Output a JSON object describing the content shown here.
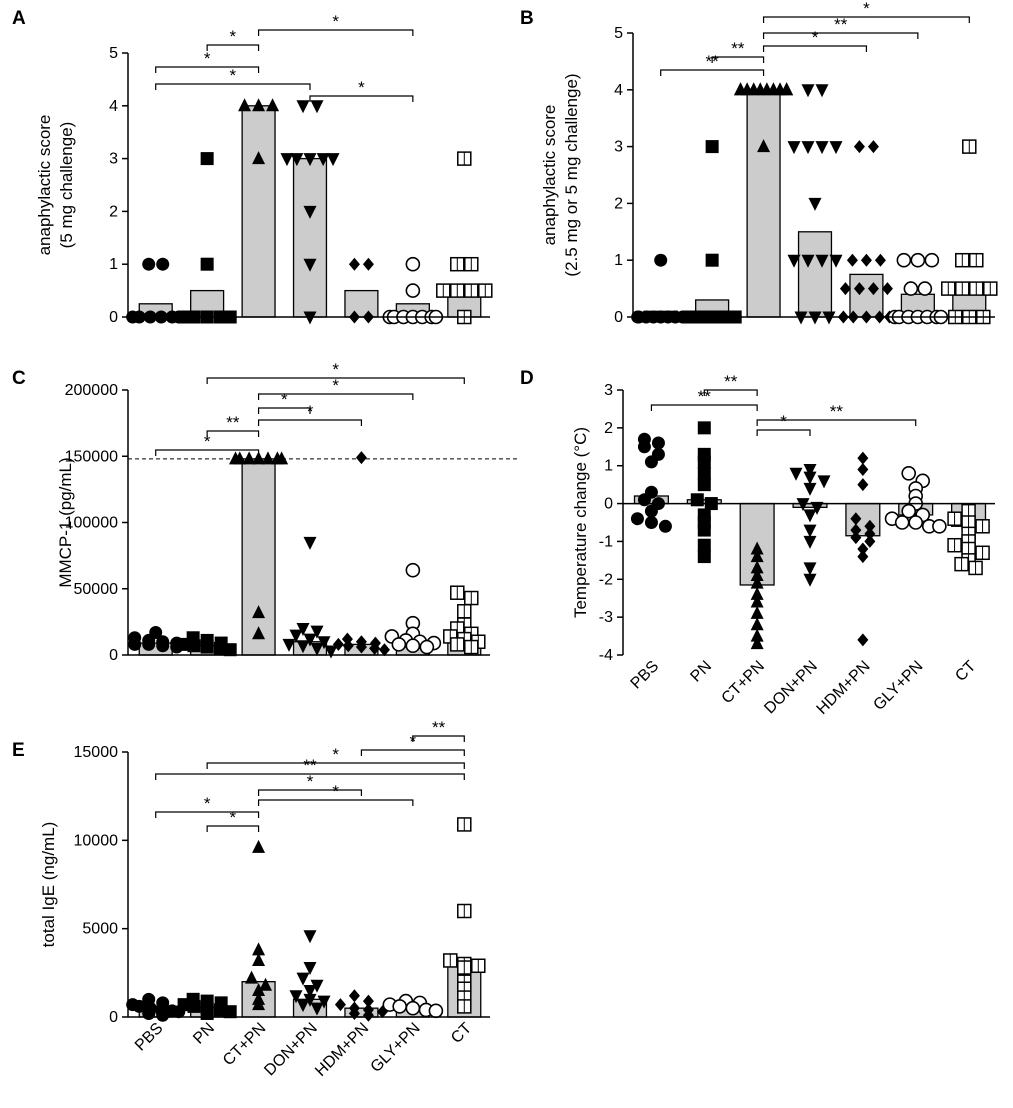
{
  "chart_data": [
    {
      "panel": "A",
      "type": "bar",
      "bar_style": "mean bar with individual points",
      "ylabel": [
        "anaphylactic score",
        "(5 mg challenge)"
      ],
      "ylim": [
        0,
        5
      ],
      "yticks": [
        "0",
        "1",
        "2",
        "3",
        "4",
        "5"
      ],
      "categories": [
        "PBS",
        "PN",
        "CT+PN",
        "DON+PN",
        "HDM+PN",
        "GLY+PN",
        "CT"
      ],
      "show_category_labels": false,
      "bar_values": [
        0.25,
        0.5,
        4,
        3,
        0.5,
        0.25,
        0.5
      ],
      "points": [
        [
          1,
          1,
          0,
          0,
          0,
          0,
          0,
          0
        ],
        [
          3,
          1,
          0,
          0,
          0,
          0,
          0
        ],
        [
          4,
          4,
          4,
          3
        ],
        [
          4,
          4,
          3,
          3,
          3,
          3,
          3,
          2,
          1,
          0
        ],
        [
          1,
          1,
          0,
          0
        ],
        [
          1,
          0.5,
          0,
          0,
          0,
          0,
          0,
          0,
          0
        ],
        [
          3,
          1,
          1,
          0.5,
          0.5,
          0.5,
          0.5,
          0
        ]
      ],
      "comparisons": [
        {
          "from": 0,
          "to": 2,
          "level": 0,
          "label": "*"
        },
        {
          "from": 1,
          "to": 2,
          "level": 1,
          "label": "*"
        },
        {
          "from": 2,
          "to": 5,
          "level": 2,
          "label": "*"
        },
        {
          "from": 0,
          "to": 3,
          "level": -1,
          "label": "*"
        },
        {
          "from": 3,
          "to": 5,
          "level": -2,
          "label": "*"
        }
      ]
    },
    {
      "panel": "B",
      "type": "bar",
      "bar_style": "mean bar with individual points",
      "ylabel": [
        "anaphylactic score",
        "(2.5 mg or 5 mg challenge)"
      ],
      "ylim": [
        0,
        5
      ],
      "yticks": [
        "0",
        "1",
        "2",
        "3",
        "4",
        "5"
      ],
      "categories": [
        "PBS",
        "PN",
        "CT+PN",
        "DON+PN",
        "HDM+PN",
        "GLY+PN",
        "CT"
      ],
      "show_category_labels": false,
      "bar_values": [
        0.1,
        0.3,
        4,
        1.5,
        0.75,
        0.4,
        0.5
      ],
      "points": [
        [
          1,
          0,
          0,
          0,
          0,
          0,
          0,
          0,
          0,
          0
        ],
        [
          3,
          1,
          0,
          0,
          0,
          0,
          0,
          0
        ],
        [
          4,
          4,
          4,
          4,
          4,
          4,
          4,
          4,
          4,
          4,
          3
        ],
        [
          4,
          4,
          3,
          3,
          3,
          3,
          2,
          1,
          1,
          1,
          1,
          0,
          0,
          0
        ],
        [
          3,
          3,
          1,
          1,
          1,
          0.5,
          0.5,
          0.5,
          0.5,
          0,
          0,
          0,
          0,
          0
        ],
        [
          1,
          1,
          1,
          0.5,
          0.5,
          0,
          0,
          0,
          0,
          0,
          0,
          0
        ],
        [
          3,
          1,
          1,
          0.5,
          0.5,
          0.5,
          0.5,
          0,
          0,
          0
        ]
      ],
      "comparisons": [
        {
          "from": 0,
          "to": 2,
          "level": 0,
          "label": "**"
        },
        {
          "from": 1,
          "to": 2,
          "level": 1,
          "label": "**"
        },
        {
          "from": 2,
          "to": 6,
          "level": 5,
          "label": "*"
        },
        {
          "from": 2,
          "to": 5,
          "level": 4,
          "label": "**"
        },
        {
          "from": 2,
          "to": 4,
          "level": 3,
          "label": "*"
        }
      ]
    },
    {
      "panel": "C",
      "type": "bar",
      "bar_style": "mean bar with individual points",
      "ylabel": [
        "MMCP-1  (pg/mL)"
      ],
      "ylim": [
        0,
        200000
      ],
      "yticks": [
        "0",
        "50000",
        "100000",
        "150000",
        "200000"
      ],
      "reference_line": 148000,
      "categories": [
        "PBS",
        "PN",
        "CT+PN",
        "DON+PN",
        "HDM+PN",
        "GLY+PN",
        "CT"
      ],
      "show_category_labels": false,
      "bar_values": [
        9000,
        7000,
        148000,
        10000,
        8000,
        9000,
        15000
      ],
      "points": [
        [
          17000,
          13000,
          11000,
          10000,
          9000,
          8000,
          8000,
          7000,
          6000
        ],
        [
          13000,
          11000,
          9000,
          8000,
          7000,
          6000,
          5000,
          4000
        ],
        [
          148000,
          148000,
          148000,
          148000,
          148000,
          148000,
          148000,
          32000,
          16000
        ],
        [
          85000,
          20000,
          18000,
          15000,
          12000,
          10000,
          8000,
          7000,
          5000,
          3000
        ],
        [
          149000,
          12000,
          10000,
          9000,
          8000,
          7000,
          6000,
          5000,
          4000
        ],
        [
          64000,
          24000,
          16000,
          14000,
          11000,
          10000,
          9000,
          8000,
          7000,
          6000
        ],
        [
          47000,
          43000,
          33000,
          23000,
          20000,
          16000,
          14000,
          12000,
          10000,
          8000,
          6000
        ]
      ],
      "comparisons": [
        {
          "from": 0,
          "to": 2,
          "level": 0,
          "label": "*"
        },
        {
          "from": 1,
          "to": 2,
          "level": 1,
          "label": "**"
        },
        {
          "from": 2,
          "to": 3,
          "level": 2,
          "label": "*"
        },
        {
          "from": 2,
          "to": 4,
          "level": 3,
          "label": "*"
        },
        {
          "from": 2,
          "to": 5,
          "level": 4,
          "label": "*"
        },
        {
          "from": 1,
          "to": 6,
          "level": 5,
          "label": "*"
        }
      ]
    },
    {
      "panel": "D",
      "type": "bar",
      "bar_style": "mean bar with individual points",
      "ylabel": [
        "Temperature change (°C)"
      ],
      "ylim": [
        -4,
        3
      ],
      "yticks": [
        "-4",
        "-3",
        "-2",
        "-1",
        "0",
        "1",
        "2",
        "3"
      ],
      "categories": [
        "PBS",
        "PN",
        "CT+PN",
        "DON+PN",
        "HDM+PN",
        "GLY+PN",
        "CT"
      ],
      "show_category_labels": true,
      "bar_values": [
        0.2,
        0.1,
        -2.15,
        -0.1,
        -0.85,
        -0.3,
        -0.6
      ],
      "points": [
        [
          1.7,
          1.6,
          1.5,
          1.3,
          1.1,
          0.3,
          0.1,
          0.0,
          -0.2,
          -0.4,
          -0.5,
          -0.6
        ],
        [
          2.0,
          1.3,
          1.1,
          0.8,
          0.5,
          0.1,
          0.0,
          -0.3,
          -0.5,
          -0.7,
          -1.1,
          -1.4
        ],
        [
          -1.2,
          -1.4,
          -1.7,
          -1.9,
          -2.1,
          -2.4,
          -2.6,
          -2.9,
          -3.2,
          -3.5,
          -3.7
        ],
        [
          0.9,
          0.8,
          0.7,
          0.6,
          0.4,
          0.0,
          -0.1,
          -0.3,
          -0.7,
          -1.0,
          -1.7,
          -2.0
        ],
        [
          1.2,
          0.9,
          0.5,
          -0.4,
          -0.6,
          -0.7,
          -0.8,
          -0.9,
          -1.0,
          -1.2,
          -1.4,
          -3.6
        ],
        [
          0.8,
          0.6,
          0.4,
          0.2,
          0.0,
          -0.2,
          -0.3,
          -0.4,
          -0.5,
          -0.5,
          -0.6,
          -0.6
        ],
        [
          -0.2,
          -0.4,
          -0.5,
          -0.6,
          -0.8,
          -1.0,
          -1.1,
          -1.2,
          -1.3,
          -1.5,
          -1.6,
          -1.7
        ]
      ],
      "comparisons": [
        {
          "from": 0,
          "to": 2,
          "level": 0,
          "label": "**"
        },
        {
          "from": 1,
          "to": 2,
          "level": 1,
          "label": "**"
        },
        {
          "from": 2,
          "to": 3,
          "level": -1,
          "label": "*"
        },
        {
          "from": 2,
          "to": 5,
          "level": -2,
          "label": "**"
        }
      ]
    },
    {
      "panel": "E",
      "type": "bar",
      "bar_style": "mean bar with individual points",
      "ylabel": [
        "total  IgE (ng/mL)"
      ],
      "ylim": [
        0,
        15000
      ],
      "yticks": [
        "0",
        "5000",
        "10000",
        "15000"
      ],
      "categories": [
        "PBS",
        "PN",
        "CT+PN",
        "DON+PN",
        "HDM+PN",
        "GLY+PN",
        "CT"
      ],
      "show_category_labels": true,
      "bar_values": [
        500,
        550,
        2000,
        1000,
        500,
        500,
        3000
      ],
      "points": [
        [
          1000,
          800,
          700,
          600,
          500,
          400,
          350,
          300,
          200,
          100
        ],
        [
          1000,
          900,
          800,
          700,
          600,
          500,
          400,
          300,
          200
        ],
        [
          9600,
          3800,
          3200,
          2200,
          1800,
          1500,
          1000,
          700
        ],
        [
          4600,
          2800,
          2200,
          1800,
          1500,
          1200,
          1000,
          900,
          700,
          500
        ],
        [
          1200,
          900,
          700,
          500,
          400,
          300,
          200,
          100
        ],
        [
          900,
          800,
          700,
          600,
          500,
          400,
          350
        ],
        [
          10900,
          6000,
          3200,
          3000,
          2900,
          2800,
          2000,
          1600,
          1100,
          600
        ]
      ],
      "comparisons": [
        {
          "from": 0,
          "to": 2,
          "level": 0,
          "label": "*"
        },
        {
          "from": 1,
          "to": 2,
          "level": -1,
          "label": "*"
        },
        {
          "from": 2,
          "to": 4,
          "level": 1,
          "label": "*"
        },
        {
          "from": 2,
          "to": 5,
          "level": 2,
          "label": "*"
        },
        {
          "from": 0,
          "to": 6,
          "level": 3,
          "label": "**"
        },
        {
          "from": 1,
          "to": 6,
          "level": 4,
          "label": "*"
        },
        {
          "from": 4,
          "to": 6,
          "level": 5,
          "label": "*"
        },
        {
          "from": 5,
          "to": 6,
          "level": 6,
          "label": "**"
        }
      ]
    }
  ],
  "markers": [
    "circle-filled",
    "square-filled",
    "triangle-up-filled",
    "triangle-down-filled",
    "diamond-filled",
    "circle-open",
    "square-open-crossed"
  ],
  "colors": {
    "bar_fill": "#cccccc",
    "ink": "#000000",
    "background": "#ffffff"
  }
}
